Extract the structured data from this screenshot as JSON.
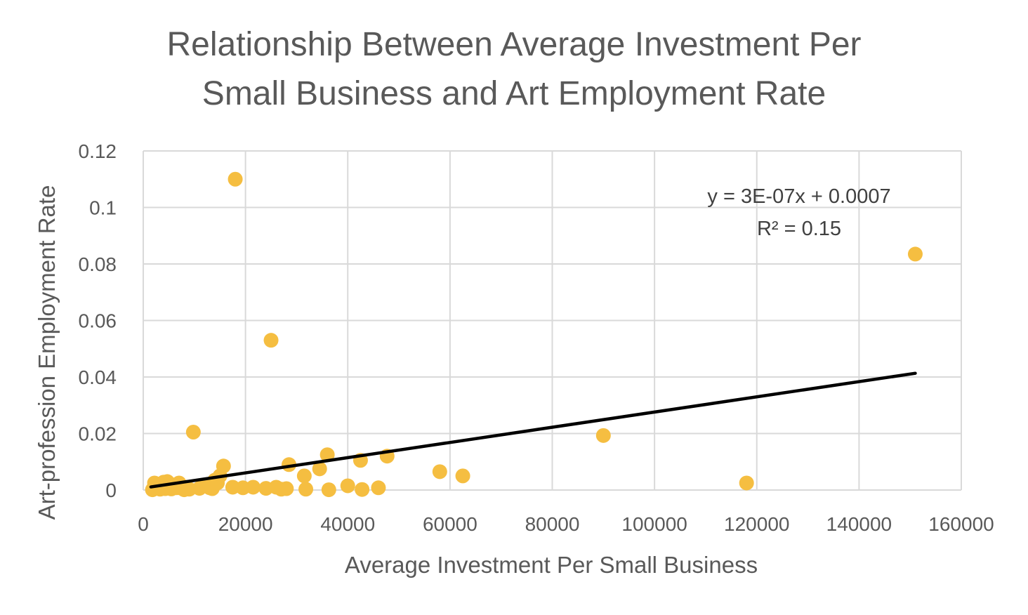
{
  "chart_data": {
    "type": "scatter",
    "title": [
      "Relationship Between Average Investment Per",
      "Small Business and Art Employment Rate"
    ],
    "xlabel": "Average Investment Per Small Business",
    "ylabel": "Art-profession Employment Rate",
    "xlim": [
      0,
      160000
    ],
    "ylim": [
      0,
      0.12
    ],
    "x_ticks": [
      "0",
      "20000",
      "40000",
      "60000",
      "80000",
      "100000",
      "120000",
      "140000",
      "160000"
    ],
    "y_ticks": [
      "0",
      "0.02",
      "0.04",
      "0.06",
      "0.08",
      "0.1",
      "0.12"
    ],
    "grid": true,
    "point_color": "#F5BE41",
    "trendline_color": "#000000",
    "trendline": {
      "equation": "y = 3E-07x + 0.0007",
      "r_squared": "R² = 0.15",
      "x_range": [
        1500,
        151000
      ],
      "slope": 2.69e-07,
      "intercept": 0.0007
    },
    "series": [
      {
        "points": [
          [
            1800,
            0.0001
          ],
          [
            2200,
            0.0025
          ],
          [
            2600,
            0.0008
          ],
          [
            3000,
            0.0015
          ],
          [
            3300,
            0.0003
          ],
          [
            3700,
            0.002
          ],
          [
            4000,
            0.0028
          ],
          [
            4300,
            0.0005
          ],
          [
            4700,
            0.003
          ],
          [
            5000,
            0.0012
          ],
          [
            5500,
            0.0004
          ],
          [
            6000,
            0.0018
          ],
          [
            6500,
            0.0008
          ],
          [
            7000,
            0.0025
          ],
          [
            7500,
            0.0006
          ],
          [
            8000,
            0.0001
          ],
          [
            8500,
            0.001
          ],
          [
            9000,
            0.0003
          ],
          [
            9800,
            0.0205
          ],
          [
            11000,
            0.0006
          ],
          [
            12000,
            0.0015
          ],
          [
            13000,
            0.0008
          ],
          [
            13500,
            0.0005
          ],
          [
            14000,
            0.0035
          ],
          [
            14500,
            0.0025
          ],
          [
            15000,
            0.005
          ],
          [
            15700,
            0.0085
          ],
          [
            17500,
            0.001
          ],
          [
            18000,
            0.11
          ],
          [
            19500,
            0.0008
          ],
          [
            21500,
            0.001
          ],
          [
            24000,
            0.0006
          ],
          [
            25000,
            0.053
          ],
          [
            26000,
            0.001
          ],
          [
            27000,
            0.0003
          ],
          [
            28000,
            0.0005
          ],
          [
            28500,
            0.009
          ],
          [
            31500,
            0.005
          ],
          [
            31800,
            0.0003
          ],
          [
            34500,
            0.0075
          ],
          [
            36000,
            0.0125
          ],
          [
            36300,
            0.0001
          ],
          [
            40000,
            0.0015
          ],
          [
            42500,
            0.0105
          ],
          [
            42800,
            0.0002
          ],
          [
            46000,
            0.0008
          ],
          [
            47700,
            0.012
          ],
          [
            58000,
            0.0065
          ],
          [
            62500,
            0.005
          ],
          [
            90000,
            0.0193
          ],
          [
            118000,
            0.0025
          ],
          [
            151000,
            0.0835
          ]
        ]
      }
    ]
  }
}
